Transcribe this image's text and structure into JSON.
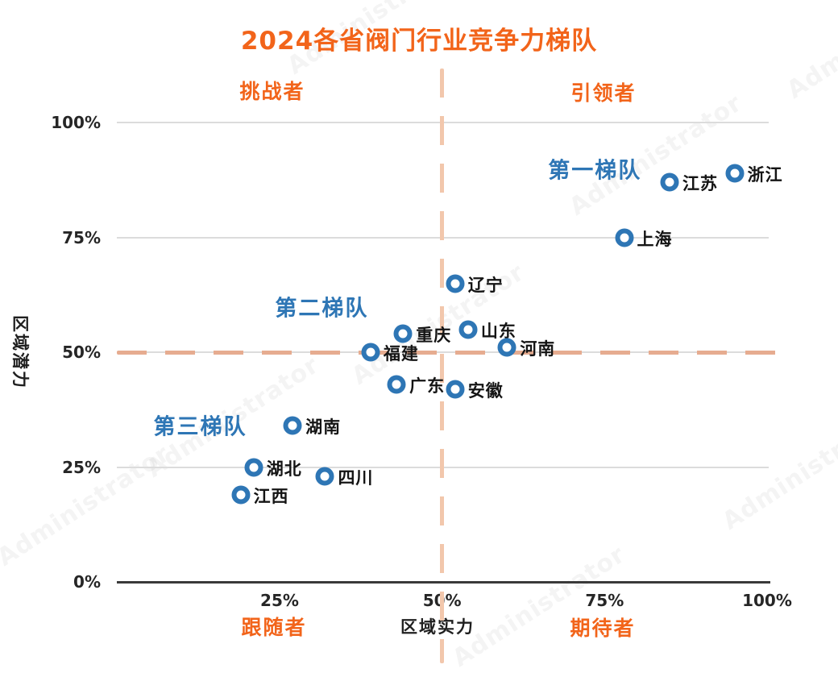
{
  "watermark_text": "Administrator",
  "chart_data": {
    "type": "scatter",
    "title": "2024各省阀门行业竞争力梯队",
    "xlabel": "区域实力",
    "ylabel": "区域潜力",
    "xlim": [
      0,
      100
    ],
    "ylim": [
      0,
      100
    ],
    "x_ticks": [
      25,
      50,
      75,
      100
    ],
    "y_ticks": [
      0,
      25,
      50,
      75,
      100
    ],
    "tick_suffix": "%",
    "grid": "horizontal-only",
    "quadrant_divider_lines": {
      "x": 50,
      "y": 50,
      "style": "dashed"
    },
    "quadrants": {
      "top_left": "挑战者",
      "top_right": "引领者",
      "bottom_left": "跟随者",
      "bottom_right": "期待者"
    },
    "tier_annotations": [
      {
        "label": "第一梯队",
        "x": 73.5,
        "y": 90
      },
      {
        "label": "第二梯队",
        "x": 31.5,
        "y": 60
      },
      {
        "label": "第三梯队",
        "x": 12.8,
        "y": 34.2
      }
    ],
    "points": [
      {
        "name": "浙江",
        "x": 95,
        "y": 89
      },
      {
        "name": "江苏",
        "x": 85,
        "y": 87
      },
      {
        "name": "上海",
        "x": 78,
        "y": 75
      },
      {
        "name": "辽宁",
        "x": 52,
        "y": 65
      },
      {
        "name": "山东",
        "x": 54,
        "y": 55
      },
      {
        "name": "重庆",
        "x": 44,
        "y": 54
      },
      {
        "name": "河南",
        "x": 60,
        "y": 51
      },
      {
        "name": "福建",
        "x": 39,
        "y": 50
      },
      {
        "name": "广东",
        "x": 43,
        "y": 43
      },
      {
        "name": "安徽",
        "x": 52,
        "y": 42
      },
      {
        "name": "湖南",
        "x": 27,
        "y": 34
      },
      {
        "name": "湖北",
        "x": 21,
        "y": 25
      },
      {
        "name": "四川",
        "x": 32,
        "y": 23
      },
      {
        "name": "江西",
        "x": 19,
        "y": 19
      }
    ],
    "colors": {
      "title_orange": "#f2641a",
      "quadrant_orange": "#f2641a",
      "tier_blue": "#2e76b5",
      "point_stroke_blue": "#2e76b5",
      "dash_peach_vertical": "#f2c7ac",
      "dash_peach_horizontal": "#e6ac90",
      "grid_gray": "#dcdcdc",
      "axis_dark": "#3a3a3a"
    }
  }
}
